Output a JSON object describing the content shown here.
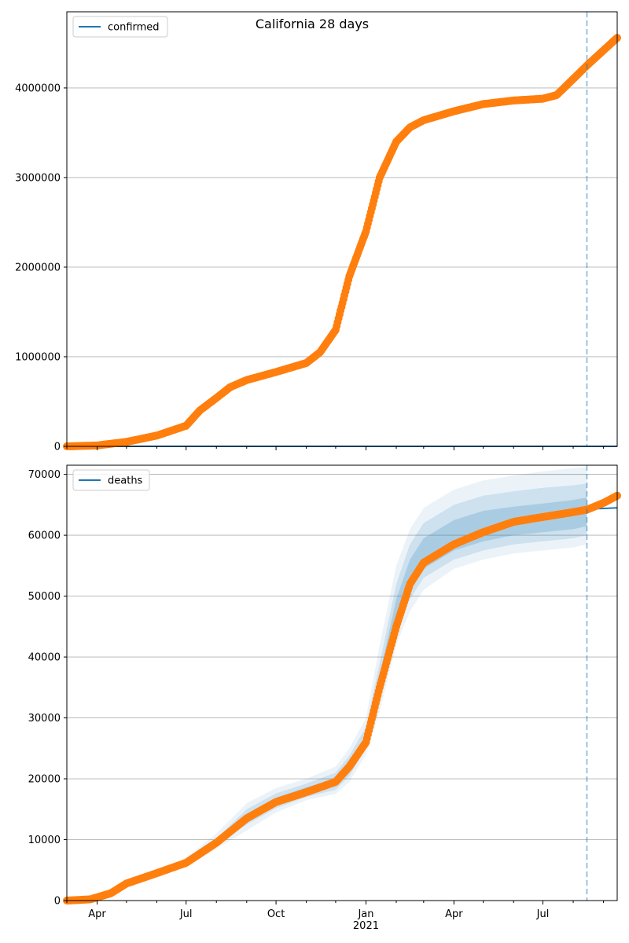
{
  "figure": {
    "title": "California 28 days"
  },
  "chart_data": [
    {
      "type": "line",
      "panel": "top",
      "ylim": [
        0,
        4850000
      ],
      "y_ticks": [
        0,
        1000000,
        2000000,
        3000000,
        4000000
      ],
      "y_tick_labels": [
        "0",
        "1000000",
        "2000000",
        "3000000",
        "4000000"
      ],
      "grid": "horizontal",
      "legend_position": "top-left",
      "series": [
        {
          "name": "confirmed",
          "color": "#1f77b4",
          "style": "line",
          "x": [
            "2020-03-01",
            "2021-08-15",
            "2021-09-15"
          ],
          "y": [
            0,
            0,
            0
          ]
        },
        {
          "color": "#ff7f0e",
          "style": "markers",
          "x": [
            "2020-03-01",
            "2020-04-01",
            "2020-05-01",
            "2020-06-01",
            "2020-07-01",
            "2020-07-15",
            "2020-08-01",
            "2020-08-15",
            "2020-09-01",
            "2020-10-01",
            "2020-11-01",
            "2020-11-15",
            "2020-12-01",
            "2020-12-15",
            "2021-01-01",
            "2021-01-15",
            "2021-02-01",
            "2021-02-15",
            "2021-03-01",
            "2021-04-01",
            "2021-05-01",
            "2021-06-01",
            "2021-07-01",
            "2021-07-15",
            "2021-08-01",
            "2021-08-15",
            "2021-09-01",
            "2021-09-15"
          ],
          "y": [
            0,
            10000,
            50000,
            120000,
            230000,
            400000,
            540000,
            660000,
            740000,
            830000,
            930000,
            1050000,
            1300000,
            1900000,
            2400000,
            3000000,
            3400000,
            3560000,
            3640000,
            3740000,
            3820000,
            3860000,
            3880000,
            3920000,
            4100000,
            4250000,
            4420000,
            4560000
          ]
        }
      ],
      "vline_x": "2021-08-15"
    },
    {
      "type": "line",
      "panel": "bottom",
      "ylim": [
        0,
        71500
      ],
      "y_ticks": [
        0,
        10000,
        20000,
        30000,
        40000,
        50000,
        60000,
        70000
      ],
      "y_tick_labels": [
        "0",
        "10000",
        "20000",
        "30000",
        "40000",
        "50000",
        "60000",
        "70000"
      ],
      "x_tick_labels": [
        "Apr",
        "Jul",
        "Oct",
        "Jan\n2021",
        "Apr",
        "Jul"
      ],
      "grid": "horizontal",
      "legend_position": "top-left",
      "series": [
        {
          "name": "deaths",
          "color": "#1f77b4",
          "style": "line",
          "x": [
            "2021-08-15",
            "2021-09-01",
            "2021-09-15"
          ],
          "y": [
            64300,
            64400,
            64500
          ]
        },
        {
          "color": "#ff7f0e",
          "style": "markers",
          "x": [
            "2020-03-01",
            "2020-03-25",
            "2020-04-15",
            "2020-05-01",
            "2020-06-01",
            "2020-07-01",
            "2020-08-01",
            "2020-09-01",
            "2020-10-01",
            "2020-11-01",
            "2020-12-01",
            "2020-12-15",
            "2021-01-01",
            "2021-01-15",
            "2021-02-01",
            "2021-02-15",
            "2021-03-01",
            "2021-04-01",
            "2021-05-01",
            "2021-06-01",
            "2021-07-01",
            "2021-08-01",
            "2021-08-15",
            "2021-09-01",
            "2021-09-15"
          ],
          "y": [
            0,
            200,
            1200,
            2800,
            4500,
            6200,
            9500,
            13500,
            16200,
            17800,
            19500,
            22000,
            26000,
            35000,
            45000,
            52000,
            55500,
            58500,
            60500,
            62200,
            63000,
            63800,
            64200,
            65300,
            66500
          ]
        }
      ],
      "bands": [
        {
          "opacity": 0.09,
          "x": [
            "2020-07-01",
            "2020-08-01",
            "2020-09-01",
            "2020-10-01",
            "2020-11-01",
            "2020-12-01",
            "2020-12-15",
            "2021-01-01",
            "2021-01-15",
            "2021-02-01",
            "2021-02-15",
            "2021-03-01",
            "2021-04-01",
            "2021-05-01",
            "2021-06-01",
            "2021-07-01",
            "2021-08-01",
            "2021-08-15"
          ],
          "lower": [
            5500,
            8500,
            11500,
            14500,
            16500,
            17500,
            19500,
            24000,
            31000,
            42000,
            47500,
            51000,
            54500,
            56000,
            57000,
            57500,
            58000,
            58500
          ],
          "upper": [
            7000,
            11000,
            16000,
            18500,
            20000,
            22000,
            25000,
            30000,
            42000,
            55000,
            61000,
            64500,
            67500,
            69000,
            69800,
            70500,
            71000,
            71200
          ]
        },
        {
          "opacity": 0.14,
          "x": [
            "2020-07-01",
            "2020-08-01",
            "2020-09-01",
            "2020-10-01",
            "2020-11-01",
            "2020-12-01",
            "2020-12-15",
            "2021-01-01",
            "2021-01-15",
            "2021-02-01",
            "2021-02-15",
            "2021-03-01",
            "2021-04-01",
            "2021-05-01",
            "2021-06-01",
            "2021-07-01",
            "2021-08-01",
            "2021-08-15"
          ],
          "lower": [
            5800,
            9000,
            12500,
            15200,
            17000,
            18200,
            20500,
            25000,
            33000,
            44000,
            49500,
            53000,
            56000,
            57500,
            58500,
            59000,
            59500,
            60000
          ],
          "upper": [
            6700,
            10200,
            15000,
            17600,
            19200,
            21000,
            23800,
            28500,
            39000,
            52000,
            58500,
            62000,
            65000,
            66500,
            67200,
            67800,
            68200,
            68500
          ]
        },
        {
          "opacity": 0.2,
          "x": [
            "2020-07-01",
            "2020-08-01",
            "2020-09-01",
            "2020-10-01",
            "2020-11-01",
            "2020-12-01",
            "2020-12-15",
            "2021-01-01",
            "2021-01-15",
            "2021-02-01",
            "2021-02-15",
            "2021-03-01",
            "2021-04-01",
            "2021-05-01",
            "2021-06-01",
            "2021-07-01",
            "2021-08-01",
            "2021-08-15"
          ],
          "lower": [
            6000,
            9300,
            13200,
            15700,
            17400,
            18800,
            21200,
            25800,
            34500,
            45500,
            51000,
            54500,
            57500,
            59000,
            60000,
            60500,
            61000,
            61500
          ],
          "upper": [
            6400,
            9800,
            14200,
            16900,
            18600,
            20000,
            22800,
            27200,
            37000,
            49500,
            56000,
            59500,
            62500,
            64000,
            64700,
            65200,
            65800,
            66200
          ]
        }
      ],
      "vline_x": "2021-08-15"
    }
  ]
}
